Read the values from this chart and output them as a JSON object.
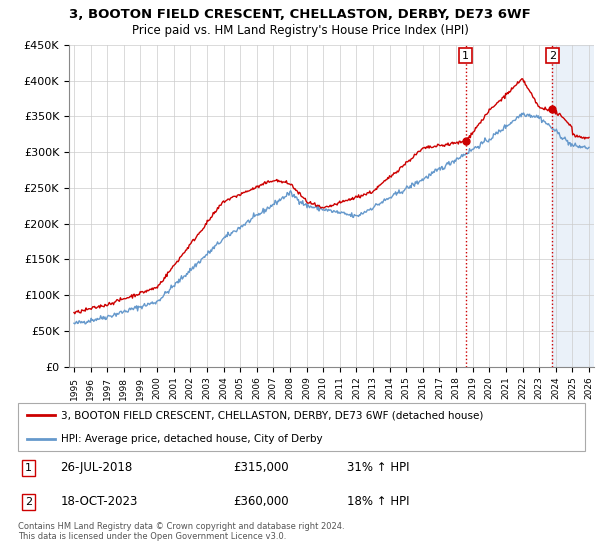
{
  "title": "3, BOOTON FIELD CRESCENT, CHELLASTON, DERBY, DE73 6WF",
  "subtitle": "Price paid vs. HM Land Registry's House Price Index (HPI)",
  "ylim": [
    0,
    450000
  ],
  "yticks": [
    0,
    50000,
    100000,
    150000,
    200000,
    250000,
    300000,
    350000,
    400000,
    450000
  ],
  "ytick_labels": [
    "£0",
    "£50K",
    "£100K",
    "£150K",
    "£200K",
    "£250K",
    "£300K",
    "£350K",
    "£400K",
    "£450K"
  ],
  "background_color": "#ffffff",
  "grid_color": "#cccccc",
  "sale1_date_x": 2018.57,
  "sale1_price": 315000,
  "sale2_date_x": 2023.8,
  "sale2_price": 360000,
  "legend_line1": "3, BOOTON FIELD CRESCENT, CHELLASTON, DERBY, DE73 6WF (detached house)",
  "legend_line2": "HPI: Average price, detached house, City of Derby",
  "footer": "Contains HM Land Registry data © Crown copyright and database right 2024.\nThis data is licensed under the Open Government Licence v3.0.",
  "hpi_color": "#6699cc",
  "price_color": "#cc0000",
  "xmin": 1995.0,
  "xmax": 2026.0
}
